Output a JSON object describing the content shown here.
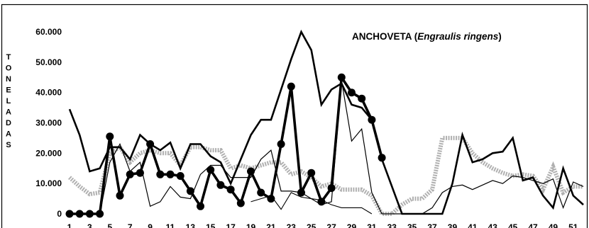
{
  "chart_data": {
    "type": "line",
    "title": "ANCHOVETA (",
    "title_species": "Engraulis ringens",
    "title_suffix": ")",
    "ylabel": "TONELADAS",
    "xlabel": "",
    "ylim": [
      0,
      65000
    ],
    "xlim": [
      1,
      52
    ],
    "grid": false,
    "legend": "none",
    "y_ticks": [
      "0",
      "10.000",
      "20.000",
      "30.000",
      "40.000",
      "50.000",
      "60.000"
    ],
    "y_tick_values": [
      0,
      10000,
      20000,
      30000,
      40000,
      50000,
      60000
    ],
    "x_ticks": [
      "1",
      "3",
      "5",
      "7",
      "9",
      "11",
      "13",
      "15",
      "17",
      "19",
      "21",
      "23",
      "25",
      "27",
      "29",
      "31",
      "33",
      "35",
      "37",
      "39",
      "41",
      "43",
      "45",
      "47",
      "49",
      "51"
    ],
    "x_tick_values": [
      1,
      3,
      5,
      7,
      9,
      11,
      13,
      15,
      17,
      19,
      21,
      23,
      25,
      27,
      29,
      31,
      33,
      35,
      37,
      39,
      41,
      43,
      45,
      47,
      49,
      51
    ],
    "series": [
      {
        "style": "thick-black",
        "color": "#000000",
        "points": [
          [
            1,
            34500
          ],
          [
            2,
            26000
          ],
          [
            3,
            14000
          ],
          [
            4,
            15000
          ],
          [
            5,
            22000
          ],
          [
            6,
            22000
          ],
          [
            7,
            18000
          ],
          [
            8,
            26000
          ],
          [
            9,
            23000
          ],
          [
            10,
            21000
          ],
          [
            11,
            23500
          ],
          [
            12,
            15000
          ],
          [
            13,
            23000
          ],
          [
            14,
            23000
          ],
          [
            15,
            19000
          ],
          [
            16,
            17000
          ],
          [
            17,
            10000
          ],
          [
            18,
            18000
          ],
          [
            19,
            26000
          ],
          [
            20,
            31000
          ],
          [
            21,
            31000
          ],
          [
            22,
            41000
          ],
          [
            23,
            51000
          ],
          [
            24,
            60000
          ],
          [
            25,
            54000
          ],
          [
            26,
            36000
          ],
          [
            27,
            41000
          ],
          [
            28,
            43000
          ],
          [
            29,
            36000
          ],
          [
            30,
            35000
          ],
          [
            31,
            31000
          ],
          [
            32,
            18000
          ],
          [
            34,
            0
          ],
          [
            35,
            0
          ],
          [
            36,
            0
          ],
          [
            37,
            0
          ],
          [
            38,
            0
          ],
          [
            39,
            10000
          ],
          [
            40,
            26000
          ],
          [
            41,
            17000
          ],
          [
            42,
            18000
          ],
          [
            43,
            20000
          ],
          [
            44,
            20500
          ],
          [
            45,
            25000
          ],
          [
            46,
            11000
          ],
          [
            47,
            12000
          ],
          [
            48,
            6000
          ],
          [
            49,
            2000
          ],
          [
            50,
            15000
          ],
          [
            51,
            6000
          ],
          [
            52,
            3000
          ]
        ]
      },
      {
        "style": "thin-black",
        "color": "#000000",
        "points": [
          [
            1,
            0
          ],
          [
            2,
            0
          ],
          [
            3,
            0
          ],
          [
            4,
            0
          ],
          [
            5,
            17000
          ],
          [
            6,
            23000
          ],
          [
            7,
            14000
          ],
          [
            8,
            17000
          ],
          [
            9,
            2500
          ],
          [
            10,
            4000
          ],
          [
            11,
            9000
          ],
          [
            12,
            5500
          ],
          [
            13,
            5000
          ],
          [
            14,
            13000
          ],
          [
            15,
            16000
          ],
          [
            16,
            16000
          ],
          [
            17,
            12000
          ],
          [
            18,
            12000
          ],
          [
            19,
            12000
          ],
          [
            20,
            18000
          ],
          [
            21,
            21000
          ],
          [
            22,
            7500
          ],
          [
            23,
            7500
          ],
          [
            24,
            7000
          ],
          [
            25,
            5000
          ],
          [
            26,
            3000
          ],
          [
            27,
            4000
          ],
          [
            28,
            44000
          ],
          [
            29,
            24000
          ],
          [
            30,
            28000
          ],
          [
            31,
            7000
          ],
          [
            32,
            0
          ],
          [
            33,
            0
          ],
          [
            34,
            0
          ],
          [
            35,
            0
          ],
          [
            36,
            0
          ],
          [
            37,
            2000
          ],
          [
            38,
            7000
          ],
          [
            39,
            9000
          ],
          [
            40,
            9500
          ],
          [
            41,
            8000
          ],
          [
            42,
            9500
          ],
          [
            43,
            11000
          ],
          [
            44,
            10000
          ],
          [
            45,
            12500
          ],
          [
            46,
            12000
          ],
          [
            47,
            11000
          ],
          [
            48,
            10000
          ],
          [
            49,
            11500
          ],
          [
            50,
            2000
          ],
          [
            51,
            10500
          ],
          [
            52,
            9000
          ]
        ]
      },
      {
        "style": "thin-black-2",
        "color": "#000000",
        "points": [
          [
            19,
            4000
          ],
          [
            20,
            5000
          ],
          [
            21,
            6000
          ],
          [
            22,
            1500
          ],
          [
            23,
            7000
          ],
          [
            24,
            5500
          ],
          [
            25,
            5000
          ],
          [
            26,
            4500
          ],
          [
            27,
            3000
          ],
          [
            28,
            2000
          ],
          [
            29,
            2000
          ],
          [
            30,
            2000
          ],
          [
            31,
            0
          ]
        ]
      },
      {
        "style": "thick-black-markers",
        "color": "#000000",
        "marker": "circle",
        "points": [
          [
            1,
            0
          ],
          [
            2,
            0
          ],
          [
            3,
            0
          ],
          [
            4,
            0
          ],
          [
            5,
            25500
          ],
          [
            6,
            6000
          ],
          [
            7,
            13000
          ],
          [
            8,
            13500
          ],
          [
            9,
            23000
          ],
          [
            10,
            13000
          ],
          [
            11,
            13000
          ],
          [
            12,
            12500
          ],
          [
            13,
            7500
          ],
          [
            14,
            2500
          ],
          [
            15,
            14500
          ],
          [
            16,
            9500
          ],
          [
            17,
            8000
          ],
          [
            18,
            3500
          ],
          [
            19,
            14000
          ],
          [
            20,
            7000
          ],
          [
            21,
            5000
          ],
          [
            22,
            23000
          ],
          [
            23,
            42000
          ],
          [
            24,
            7000
          ],
          [
            25,
            13500
          ],
          [
            26,
            4000
          ],
          [
            27,
            8500
          ],
          [
            28,
            45000
          ],
          [
            29,
            40000
          ],
          [
            30,
            38000
          ],
          [
            31,
            31000
          ],
          [
            32,
            18500
          ]
        ]
      },
      {
        "style": "gray-dotted-band",
        "color": "#aaaaaa",
        "points": [
          [
            1,
            12000
          ],
          [
            2,
            9000
          ],
          [
            3,
            6500
          ],
          [
            4,
            7000
          ],
          [
            5,
            20000
          ],
          [
            6,
            22000
          ],
          [
            7,
            17000
          ],
          [
            8,
            20000
          ],
          [
            9,
            21000
          ],
          [
            10,
            20000
          ],
          [
            11,
            20000
          ],
          [
            12,
            16000
          ],
          [
            13,
            22000
          ],
          [
            14,
            22000
          ],
          [
            15,
            21000
          ],
          [
            16,
            21000
          ],
          [
            17,
            15000
          ],
          [
            18,
            16000
          ],
          [
            19,
            15000
          ],
          [
            20,
            16000
          ],
          [
            21,
            17000
          ],
          [
            22,
            17000
          ],
          [
            23,
            13000
          ],
          [
            24,
            14000
          ],
          [
            25,
            12000
          ],
          [
            26,
            9000
          ],
          [
            27,
            10000
          ],
          [
            28,
            8000
          ],
          [
            29,
            8000
          ],
          [
            30,
            8000
          ],
          [
            31,
            6000
          ],
          [
            32,
            0
          ],
          [
            33,
            0
          ],
          [
            34,
            3000
          ],
          [
            35,
            5000
          ],
          [
            36,
            5000
          ],
          [
            37,
            8000
          ],
          [
            38,
            25000
          ],
          [
            39,
            25000
          ],
          [
            40,
            25000
          ],
          [
            41,
            20000
          ],
          [
            42,
            17000
          ],
          [
            43,
            15000
          ],
          [
            44,
            13500
          ],
          [
            45,
            12500
          ],
          [
            46,
            13000
          ],
          [
            47,
            12500
          ],
          [
            48,
            8000
          ],
          [
            49,
            15500
          ],
          [
            50,
            7000
          ],
          [
            51,
            9000
          ],
          [
            52,
            9000
          ]
        ]
      }
    ]
  }
}
